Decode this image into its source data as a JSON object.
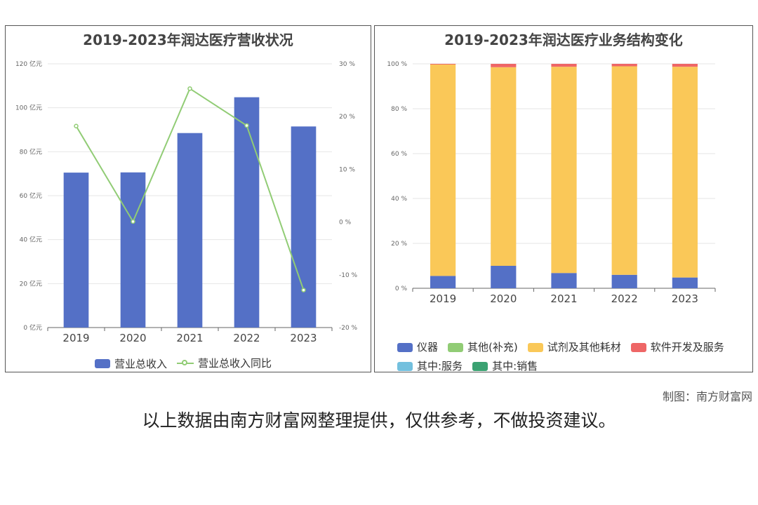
{
  "charts": [
    {
      "type": "bar",
      "title": "2019-2023年润达医疗营收状况",
      "categories": [
        "2019",
        "2020",
        "2021",
        "2022",
        "2023"
      ],
      "y_left": {
        "ticks": [
          "0 亿元",
          "20 亿元",
          "40 亿元",
          "60 亿元",
          "80 亿元",
          "100 亿元",
          "120 亿元"
        ],
        "ylim": [
          0,
          120
        ]
      },
      "y_right": {
        "ticks": [
          "-20 %",
          "-10 %",
          "0 %",
          "10 %",
          "20 %",
          "30 %"
        ],
        "ylim": [
          -20,
          30
        ]
      },
      "series": [
        {
          "name": "营业总收入",
          "kind": "bar",
          "axis": "left",
          "color": "#5470c6",
          "values": [
            70.5,
            70.6,
            88.5,
            104.8,
            91.5
          ]
        },
        {
          "name": "营业总收入同比",
          "kind": "line",
          "axis": "right",
          "color": "#91cc75",
          "values": [
            18.2,
            0.1,
            25.3,
            18.3,
            -12.9
          ]
        }
      ],
      "legend_position": "bottom"
    },
    {
      "type": "bar",
      "stacked": true,
      "title": "2019-2023年润达医疗业务结构变化",
      "categories": [
        "2019",
        "2020",
        "2021",
        "2022",
        "2023"
      ],
      "y": {
        "ticks": [
          "0 %",
          "20 %",
          "40 %",
          "60 %",
          "80 %",
          "100 %"
        ],
        "ylim": [
          0,
          100
        ]
      },
      "series": [
        {
          "name": "仪器",
          "color": "#5470c6",
          "values": [
            5.5,
            10.0,
            6.8,
            6.0,
            4.8
          ]
        },
        {
          "name": "其他(补充)",
          "color": "#91cc75",
          "values": [
            0,
            0,
            0,
            0,
            0
          ]
        },
        {
          "name": "试剂及其他耗材",
          "color": "#fac858",
          "values": [
            94.2,
            88.5,
            91.9,
            92.9,
            93.9
          ]
        },
        {
          "name": "软件开发及服务",
          "color": "#ee6666",
          "values": [
            0.3,
            1.5,
            1.3,
            1.1,
            1.3
          ]
        },
        {
          "name": "其中:服务",
          "color": "#73c0de",
          "values": [
            0,
            0,
            0,
            0,
            0
          ]
        },
        {
          "name": "其中:销售",
          "color": "#3ba272",
          "values": [
            0,
            0,
            0,
            0,
            0
          ]
        }
      ],
      "legend_position": "bottom"
    }
  ],
  "credit": "制图：南方财富网",
  "disclaimer": "以上数据由南方财富网整理提供，仅供参考，不做投资建议。"
}
